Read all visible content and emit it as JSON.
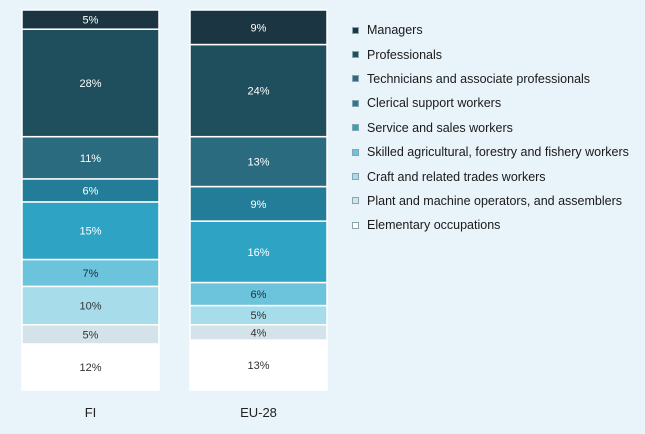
{
  "chart_data": {
    "type": "bar",
    "stacked": true,
    "categories": [
      "FI",
      "EU-28"
    ],
    "series": [
      {
        "name": "Elementary occupations",
        "values": [
          12,
          13
        ],
        "color": "#ffffff",
        "label_color": "#333333"
      },
      {
        "name": "Plant and machine operators, and assemblers",
        "values": [
          5,
          4
        ],
        "color": "#d3e3e9",
        "label_color": "#333333"
      },
      {
        "name": "Craft and related trades workers",
        "values": [
          10,
          5
        ],
        "color": "#a7dcea",
        "label_color": "#333333"
      },
      {
        "name": "Skilled agricultural, forestry and fishery workers",
        "values": [
          7,
          6
        ],
        "color": "#6cc3dc",
        "label_color": "#1e2f38"
      },
      {
        "name": "Service and sales workers",
        "values": [
          15,
          16
        ],
        "color": "#2fa3c4",
        "label_color": "#ffffff"
      },
      {
        "name": "Clerical support workers",
        "values": [
          6,
          9
        ],
        "color": "#247d98",
        "label_color": "#ffffff"
      },
      {
        "name": "Technicians and associate professionals",
        "values": [
          11,
          13
        ],
        "color": "#2a6b80",
        "label_color": "#ffffff"
      },
      {
        "name": "Professionals",
        "values": [
          28,
          24
        ],
        "color": "#1f4e5d",
        "label_color": "#ffffff"
      },
      {
        "name": "Managers",
        "values": [
          5,
          9
        ],
        "color": "#1b3642",
        "label_color": "#ffffff"
      }
    ],
    "legend_order": [
      "Managers",
      "Professionals",
      "Technicians and associate professionals",
      "Clerical support workers",
      "Service and sales workers",
      "Skilled agricultural, forestry and fishery workers",
      "Craft and related trades workers",
      "Plant and machine operators, and assemblers",
      "Elementary occupations"
    ],
    "legend_position": "right",
    "value_suffix": "%",
    "ylim": [
      0,
      100
    ],
    "grid": false
  }
}
